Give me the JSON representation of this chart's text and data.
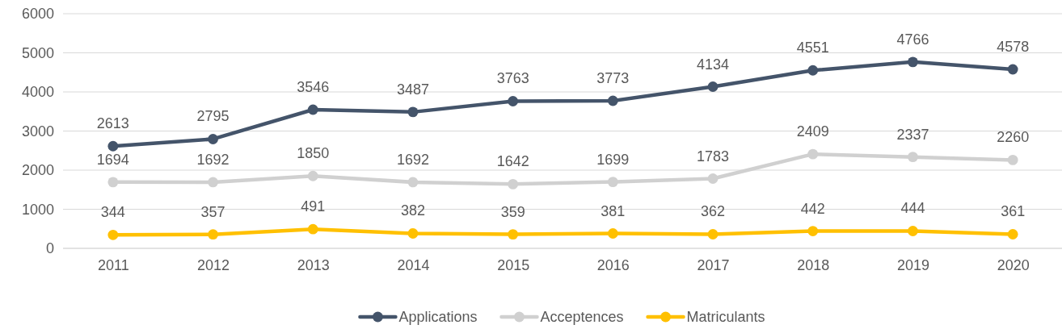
{
  "chart_data": {
    "type": "line",
    "categories": [
      "2011",
      "2012",
      "2013",
      "2014",
      "2015",
      "2016",
      "2017",
      "2018",
      "2019",
      "2020"
    ],
    "series": [
      {
        "name": "Applications",
        "color": "#44546a",
        "values": [
          2613,
          2795,
          3546,
          3487,
          3763,
          3773,
          4134,
          4551,
          4766,
          4578
        ]
      },
      {
        "name": "Acceptences",
        "color": "#d0d0d0",
        "values": [
          1694,
          1692,
          1850,
          1692,
          1642,
          1699,
          1783,
          2409,
          2337,
          2260
        ]
      },
      {
        "name": "Matriculants",
        "color": "#ffc000",
        "values": [
          344,
          357,
          491,
          382,
          359,
          381,
          362,
          442,
          444,
          361
        ]
      }
    ],
    "ylim": [
      0,
      6000
    ],
    "yticks": [
      0,
      1000,
      2000,
      3000,
      4000,
      5000,
      6000
    ],
    "grid": "y",
    "legend": "bottom",
    "marker": "circle",
    "line_style": "solid",
    "data_labels": true
  }
}
